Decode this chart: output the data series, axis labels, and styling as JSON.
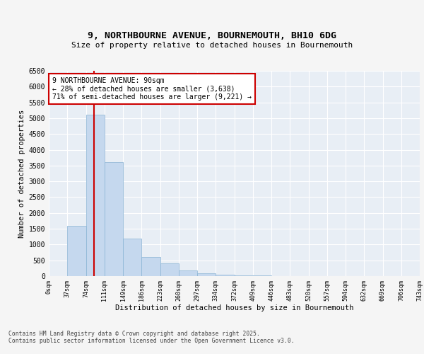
{
  "title_line1": "9, NORTHBOURNE AVENUE, BOURNEMOUTH, BH10 6DG",
  "title_line2": "Size of property relative to detached houses in Bournemouth",
  "xlabel": "Distribution of detached houses by size in Bournemouth",
  "ylabel": "Number of detached properties",
  "bar_values": [
    5,
    1600,
    5100,
    3600,
    1180,
    600,
    400,
    180,
    90,
    45,
    20,
    12,
    7,
    4,
    2,
    1,
    1,
    1,
    1,
    1
  ],
  "bar_labels": [
    "0sqm",
    "37sqm",
    "74sqm",
    "111sqm",
    "149sqm",
    "186sqm",
    "223sqm",
    "260sqm",
    "297sqm",
    "334sqm",
    "372sqm",
    "409sqm",
    "446sqm",
    "483sqm",
    "520sqm",
    "557sqm",
    "594sqm",
    "632sqm",
    "669sqm",
    "706sqm",
    "743sqm"
  ],
  "bar_color": "#c5d8ee",
  "bar_edge_color": "#8ab4d4",
  "vline_color": "#cc0000",
  "annotation_text": "9 NORTHBOURNE AVENUE: 90sqm\n← 28% of detached houses are smaller (3,638)\n71% of semi-detached houses are larger (9,221) →",
  "annotation_box_color": "#ffffff",
  "annotation_border_color": "#cc0000",
  "ylim": [
    0,
    6500
  ],
  "yticks": [
    0,
    500,
    1000,
    1500,
    2000,
    2500,
    3000,
    3500,
    4000,
    4500,
    5000,
    5500,
    6000,
    6500
  ],
  "plot_bg_color": "#e8eef5",
  "grid_color": "#ffffff",
  "fig_bg_color": "#f5f5f5",
  "footer_line1": "Contains HM Land Registry data © Crown copyright and database right 2025.",
  "footer_line2": "Contains public sector information licensed under the Open Government Licence v3.0."
}
